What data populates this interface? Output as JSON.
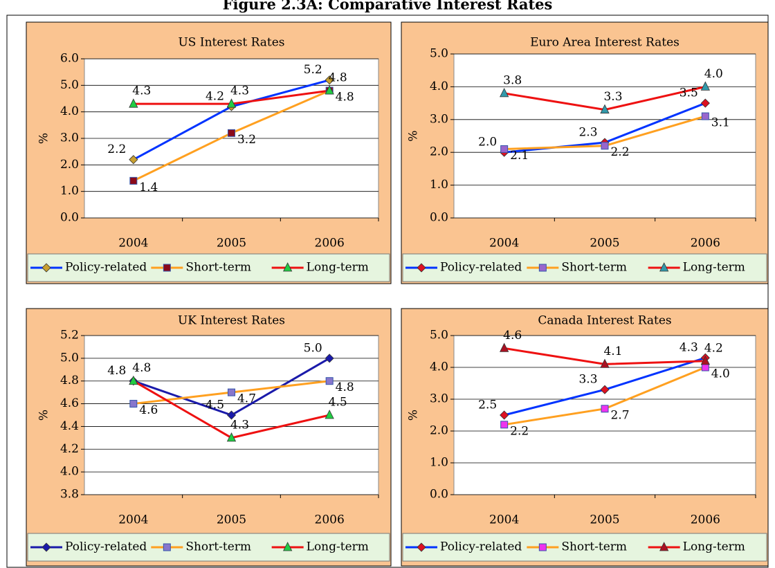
{
  "title": "Figure 2.3A: Comparative Interest Rates",
  "chart_data": [
    {
      "type": "line",
      "title": "US Interest Rates",
      "ylabel": "%",
      "categories": [
        "2004",
        "2005",
        "2006"
      ],
      "ylim": [
        0,
        6
      ],
      "yticks": [
        {
          "value": 0,
          "label": "0.0"
        },
        {
          "value": 1,
          "label": "1.0"
        },
        {
          "value": 2,
          "label": "2.0"
        },
        {
          "value": 3,
          "label": "3.0"
        },
        {
          "value": 4,
          "label": "4.0"
        },
        {
          "value": 5,
          "label": "5.0"
        },
        {
          "value": 6,
          "label": "6.0"
        }
      ],
      "grid": true,
      "series": [
        {
          "name": "Policy-related",
          "color": "#0033ff",
          "marker": "diamond",
          "marker_color": "#c8a030",
          "values": [
            2.2,
            4.2,
            5.2
          ]
        },
        {
          "name": "Short-term",
          "color": "#ffa020",
          "marker": "square",
          "marker_color": "#8b0a1a",
          "values": [
            1.4,
            3.2,
            4.8
          ]
        },
        {
          "name": "Long-term",
          "color": "#ee1111",
          "marker": "triangle",
          "marker_color": "#22cc44",
          "values": [
            4.3,
            4.3,
            4.8
          ]
        }
      ]
    },
    {
      "type": "line",
      "title": "Euro Area Interest Rates",
      "ylabel": "%",
      "categories": [
        "2004",
        "2005",
        "2006"
      ],
      "ylim": [
        0,
        5
      ],
      "yticks": [
        {
          "value": 0,
          "label": "0.0"
        },
        {
          "value": 1,
          "label": "1.0"
        },
        {
          "value": 2,
          "label": "2.0"
        },
        {
          "value": 3,
          "label": "3.0"
        },
        {
          "value": 4,
          "label": "4.0"
        },
        {
          "value": 5,
          "label": "5.0"
        }
      ],
      "grid": true,
      "series": [
        {
          "name": "Policy-related",
          "color": "#0033ff",
          "marker": "diamond",
          "marker_color": "#dd1122",
          "values": [
            2.0,
            2.3,
            3.5
          ],
          "value_labels": [
            "2.0",
            "2.3",
            "3.5"
          ]
        },
        {
          "name": "Short-term",
          "color": "#ffa020",
          "marker": "square",
          "marker_color": "#9966cc",
          "values": [
            2.1,
            2.2,
            3.1
          ]
        },
        {
          "name": "Long-term",
          "color": "#ee1111",
          "marker": "triangle",
          "marker_color": "#3399aa",
          "values": [
            3.8,
            3.3,
            4.0
          ],
          "value_labels": [
            "3.8",
            "3.3",
            "4.0"
          ]
        }
      ]
    },
    {
      "type": "line",
      "title": "UK Interest Rates",
      "ylabel": "%",
      "categories": [
        "2004",
        "2005",
        "2006"
      ],
      "ylim": [
        3.8,
        5.2
      ],
      "yticks": [
        3.8,
        {
          "value": 4,
          "label": "4.0"
        },
        4.2,
        4.4,
        4.6,
        4.8,
        {
          "value": 5,
          "label": "5.0"
        },
        5.2
      ],
      "grid": true,
      "series": [
        {
          "name": "Policy-related",
          "color": "#1a1aaa",
          "marker": "diamond",
          "marker_color": "#1a1aaa",
          "values": [
            4.8,
            4.5,
            5.0
          ],
          "value_labels": [
            "4.8",
            "4.5",
            "5.0"
          ]
        },
        {
          "name": "Short-term",
          "color": "#ffa020",
          "marker": "square",
          "marker_color": "#8877cc",
          "values": [
            4.6,
            4.7,
            4.8
          ]
        },
        {
          "name": "Long-term",
          "color": "#ee1111",
          "marker": "triangle",
          "marker_color": "#22cc44",
          "values": [
            4.8,
            4.3,
            4.5
          ]
        }
      ]
    },
    {
      "type": "line",
      "title": "Canada Interest Rates",
      "ylabel": "%",
      "categories": [
        "2004",
        "2005",
        "2006"
      ],
      "ylim": [
        0,
        5
      ],
      "yticks": [
        {
          "value": 0,
          "label": "0.0"
        },
        {
          "value": 1,
          "label": "1.0"
        },
        {
          "value": 2,
          "label": "2.0"
        },
        {
          "value": 3,
          "label": "3.0"
        },
        {
          "value": 4,
          "label": "4.0"
        },
        {
          "value": 5,
          "label": "5.0"
        }
      ],
      "grid": true,
      "series": [
        {
          "name": "Policy-related",
          "color": "#0033ff",
          "marker": "diamond",
          "marker_color": "#dd1122",
          "values": [
            2.5,
            3.3,
            4.3
          ]
        },
        {
          "name": "Short-term",
          "color": "#ffa020",
          "marker": "square",
          "marker_color": "#ee33ee",
          "values": [
            2.2,
            2.7,
            4.0
          ],
          "value_labels": [
            "2.2",
            "2.7",
            "4.0"
          ]
        },
        {
          "name": "Long-term",
          "color": "#ee1111",
          "marker": "triangle",
          "marker_color": "#aa1122",
          "values": [
            4.6,
            4.1,
            4.2
          ]
        }
      ]
    }
  ]
}
